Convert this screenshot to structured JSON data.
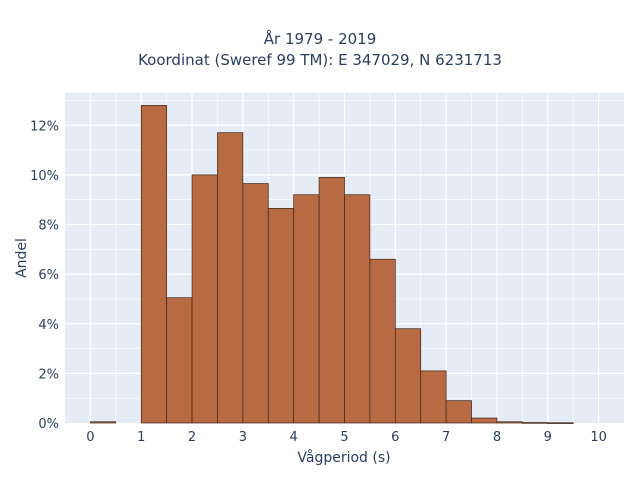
{
  "chart_data": {
    "type": "bar",
    "title_lines": [
      "År 1979 - 2019",
      "Koordinat (Sweref 99 TM): E 347029, N 6231713"
    ],
    "xlabel": "Vågperiod (s)",
    "ylabel": "Andel",
    "x_ticks": [
      "0",
      "1",
      "2",
      "3",
      "4",
      "5",
      "6",
      "7",
      "8",
      "9",
      "10"
    ],
    "x_tick_values": [
      0,
      1,
      2,
      3,
      4,
      5,
      6,
      7,
      8,
      9,
      10
    ],
    "y_ticks": [
      "0%",
      "2%",
      "4%",
      "6%",
      "8%",
      "10%",
      "12%"
    ],
    "y_tick_values": [
      0,
      2,
      4,
      6,
      8,
      10,
      12
    ],
    "xlim": [
      -0.5,
      10.5
    ],
    "ylim": [
      0,
      13.3
    ],
    "bin_width": 0.5,
    "bins": [
      {
        "x0": 0.0,
        "value": 0.05
      },
      {
        "x0": 1.0,
        "value": 12.8
      },
      {
        "x0": 1.5,
        "value": 5.05
      },
      {
        "x0": 2.0,
        "value": 10.0
      },
      {
        "x0": 2.5,
        "value": 11.7
      },
      {
        "x0": 3.0,
        "value": 9.65
      },
      {
        "x0": 3.5,
        "value": 8.65
      },
      {
        "x0": 4.0,
        "value": 9.2
      },
      {
        "x0": 4.5,
        "value": 9.9
      },
      {
        "x0": 5.0,
        "value": 9.2
      },
      {
        "x0": 5.5,
        "value": 6.6
      },
      {
        "x0": 6.0,
        "value": 3.8
      },
      {
        "x0": 6.5,
        "value": 2.1
      },
      {
        "x0": 7.0,
        "value": 0.9
      },
      {
        "x0": 7.5,
        "value": 0.2
      },
      {
        "x0": 8.0,
        "value": 0.05
      },
      {
        "x0": 8.5,
        "value": 0.02
      },
      {
        "x0": 9.0,
        "value": 0.01
      }
    ],
    "grid": true,
    "colors": {
      "bar_fill": "#b86b42",
      "bar_stroke": "#3b2518",
      "plot_bg": "#e5ecf6",
      "grid": "#ffffff"
    }
  }
}
